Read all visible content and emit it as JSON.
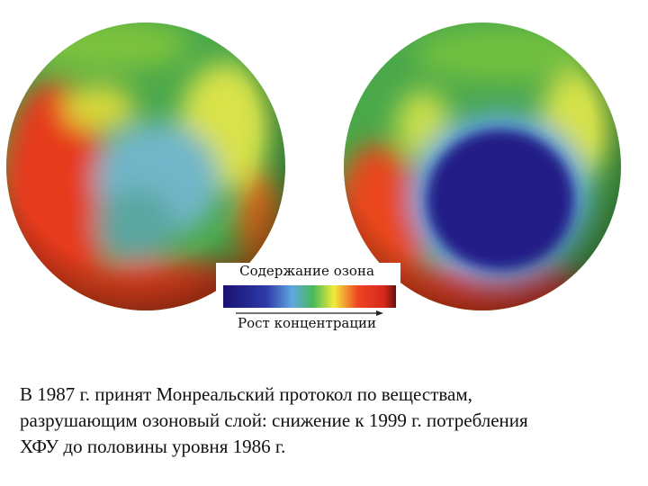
{
  "legend": {
    "title": "Содержание озона",
    "axis_label": "Рост концентрации"
  },
  "caption": {
    "lines": [
      "В 1987 г. принят Монреальский протокол по веществам,",
      "разрушающим озоновый слой: снижение к 1999 г. потребления",
      "ХФУ до половины уровня 1986 г."
    ]
  }
}
